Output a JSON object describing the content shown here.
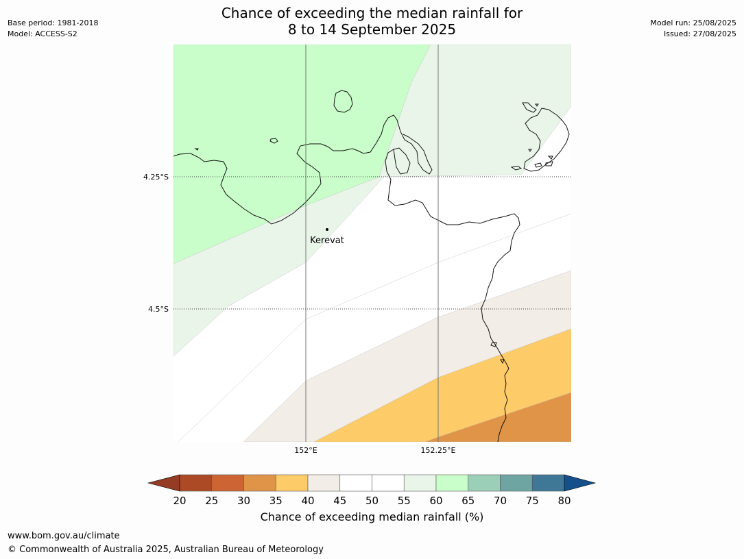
{
  "header": {
    "title_line1": "Chance of exceeding the median rainfall for",
    "title_line2": "8 to 14 September 2025",
    "base_period": "Base period: 1981-2018",
    "model": "Model: ACCESS-S2",
    "model_run": "Model run: 25/08/2025",
    "issued": "Issued: 27/08/2025"
  },
  "map": {
    "lat_labels": [
      "4.25°S",
      "4.5°S"
    ],
    "lon_labels": [
      "152°E",
      "152.25°E"
    ],
    "place": "Kerevat"
  },
  "colorbar": {
    "title": "Chance of exceeding median rainfall (%)",
    "ticks": [
      "20",
      "25",
      "30",
      "35",
      "40",
      "45",
      "50",
      "55",
      "60",
      "65",
      "70",
      "75",
      "80"
    ],
    "colors": [
      "#ad4a26",
      "#cc6533",
      "#e09448",
      "#fdcb68",
      "#f2ede6",
      "#ffffff",
      "#ffffff",
      "#eaf5ea",
      "#c9fdca",
      "#9bcfb8",
      "#6ea4a2",
      "#3e7896"
    ],
    "under_color": "#943c24",
    "over_color": "#15508a"
  },
  "footer": {
    "url": "www.bom.gov.au/climate",
    "copyright": "© Commonwealth of Australia 2025, Australian Bureau of Meteorology"
  }
}
